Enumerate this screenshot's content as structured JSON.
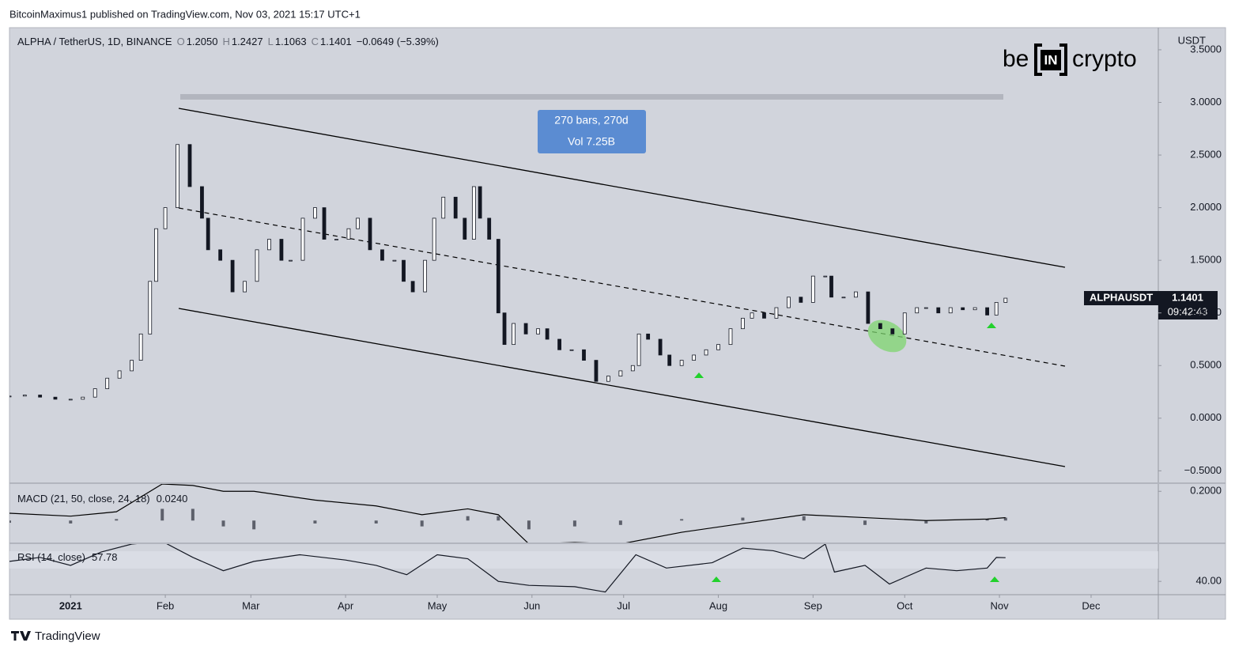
{
  "header": "BitcoinMaximus1 published on TradingView.com, Nov 03, 2021 15:17 UTC+1",
  "legend": {
    "symbol": "ALPHA / TetherUS, 1D, BINANCE",
    "ohlc": [
      {
        "key": "O",
        "value": "1.2050"
      },
      {
        "key": "H",
        "value": "1.2427"
      },
      {
        "key": "L",
        "value": "1.1063"
      },
      {
        "key": "C",
        "value": "1.1401"
      }
    ],
    "change": "−0.0649 (−5.39%)"
  },
  "logo": {
    "left": "be",
    "mid": "IN",
    "right": "crypto"
  },
  "measure": {
    "line1": "270 bars, 270d",
    "line2": "Vol 7.25B"
  },
  "price_tag": {
    "symbol": "ALPHAUSDT",
    "countdown": "09:42:43"
  },
  "footer": "TradingView",
  "chart_data": [
    {
      "type": "candlestick",
      "y_unit": "USDT",
      "color": "#131722",
      "x": [
        -20,
        -15,
        -10,
        -5,
        0,
        4,
        8,
        12,
        16,
        20,
        23,
        26,
        28,
        31,
        35,
        39,
        43,
        45,
        49,
        53,
        57,
        61,
        65,
        69,
        72,
        76,
        80,
        83,
        87,
        91,
        94,
        98,
        102,
        106,
        109,
        112,
        116,
        119,
        122,
        126,
        129,
        132,
        134,
        137,
        140,
        142,
        145,
        149,
        153,
        156,
        160,
        164,
        168,
        172,
        176,
        180,
        184,
        186,
        189,
        193,
        196,
        200,
        204,
        208,
        212,
        216,
        220,
        223,
        227,
        231,
        235,
        239,
        243,
        247,
        249,
        253,
        257,
        261,
        265,
        269,
        273,
        277,
        280,
        284,
        288,
        292,
        296,
        300,
        303,
        306
      ],
      "values": [
        0.21,
        0.22,
        0.2,
        0.18,
        0.18,
        0.2,
        0.28,
        0.38,
        0.45,
        0.55,
        0.8,
        1.3,
        1.8,
        2.0,
        2.6,
        2.2,
        1.9,
        1.6,
        1.5,
        1.2,
        1.3,
        1.6,
        1.7,
        1.5,
        1.5,
        1.9,
        2.0,
        1.7,
        1.7,
        1.8,
        1.9,
        1.6,
        1.5,
        1.5,
        1.3,
        1.2,
        1.5,
        1.9,
        2.1,
        1.9,
        1.7,
        2.2,
        1.9,
        1.7,
        1.0,
        0.7,
        0.9,
        0.8,
        0.85,
        0.75,
        0.65,
        0.65,
        0.55,
        0.35,
        0.4,
        0.45,
        0.5,
        0.8,
        0.75,
        0.6,
        0.5,
        0.55,
        0.6,
        0.65,
        0.7,
        0.85,
        0.95,
        1.0,
        0.95,
        1.05,
        1.15,
        1.1,
        1.35,
        1.35,
        1.15,
        1.15,
        1.2,
        0.9,
        0.85,
        0.8,
        1.0,
        1.05,
        1.05,
        1.0,
        1.05,
        1.03,
        1.05,
        0.98,
        1.1,
        1.1401
      ],
      "xlim": [
        -20,
        356
      ],
      "xticks": [
        {
          "value": 0,
          "label": "2021"
        },
        {
          "value": 31,
          "label": "Feb"
        },
        {
          "value": 59,
          "label": "Mar"
        },
        {
          "value": 90,
          "label": "Apr"
        },
        {
          "value": 120,
          "label": "May"
        },
        {
          "value": 151,
          "label": "Jun"
        },
        {
          "value": 181,
          "label": "Jul"
        },
        {
          "value": 212,
          "label": "Aug"
        },
        {
          "value": 243,
          "label": "Sep"
        },
        {
          "value": 273,
          "label": "Oct"
        },
        {
          "value": 304,
          "label": "Nov"
        },
        {
          "value": 334,
          "label": "Dec"
        }
      ],
      "ylim": [
        -0.61,
        3.71
      ],
      "yticks": [
        {
          "value": -0.5,
          "label": "−0.5000"
        },
        {
          "value": 0,
          "label": "0.0000"
        },
        {
          "value": 0.5,
          "label": "0.5000"
        },
        {
          "value": 1,
          "label": "1.0000"
        },
        {
          "value": 1.5,
          "label": "1.5000"
        },
        {
          "value": 2,
          "label": "2.0000"
        },
        {
          "value": 2.5,
          "label": "2.5000"
        },
        {
          "value": 3,
          "label": "3.0000"
        },
        {
          "value": 3.5,
          "label": "3.5000"
        }
      ]
    },
    {
      "type": "macd",
      "title": "MACD (21, 50, close, 24, 18)",
      "current": "0.0240",
      "x": [
        -20,
        0,
        15,
        30,
        40,
        50,
        60,
        80,
        100,
        115,
        130,
        140,
        150,
        165,
        180,
        200,
        220,
        240,
        260,
        280,
        300,
        306
      ],
      "series": [
        {
          "style": "histogram",
          "color": "#5d606b",
          "values": [
            -0.015,
            -0.02,
            0.01,
            0.08,
            0.08,
            -0.04,
            -0.06,
            -0.02,
            -0.02,
            -0.04,
            0.03,
            0.03,
            -0.06,
            -0.04,
            -0.03,
            0.01,
            0.02,
            0.03,
            -0.03,
            -0.02,
            0.01,
            0.02
          ]
        },
        {
          "style": "line",
          "color": "#000000",
          "values": [
            0.05,
            0.03,
            0.06,
            0.25,
            0.24,
            0.2,
            0.2,
            0.14,
            0.1,
            0.04,
            0.08,
            0.04,
            -0.16,
            -0.15,
            -0.16,
            -0.08,
            -0.02,
            0.04,
            0.02,
            0.0,
            0.01,
            0.02
          ]
        }
      ],
      "ylim": [
        -0.15,
        0.25
      ],
      "yticks": [
        {
          "value": 0.2,
          "label": "0.2000"
        }
      ]
    },
    {
      "type": "rsi",
      "title": "RSI (14, close)",
      "color": "#131722",
      "x": [
        -20,
        -10,
        0,
        10,
        20,
        30,
        40,
        50,
        60,
        75,
        90,
        100,
        110,
        120,
        130,
        140,
        150,
        165,
        175,
        185,
        195,
        210,
        220,
        230,
        240,
        247,
        250,
        260,
        268,
        280,
        290,
        300,
        303,
        306
      ],
      "values": [
        55,
        58,
        52,
        62,
        68,
        70,
        58,
        48,
        55,
        60,
        56,
        52,
        45,
        60,
        57,
        40,
        37,
        36,
        32,
        60,
        50,
        54,
        65,
        63,
        57,
        68,
        47,
        52,
        38,
        50,
        48,
        50,
        58,
        57.78
      ],
      "ylim": [
        30,
        68
      ],
      "yticks": [
        {
          "value": 40,
          "label": "40.00"
        }
      ]
    }
  ]
}
